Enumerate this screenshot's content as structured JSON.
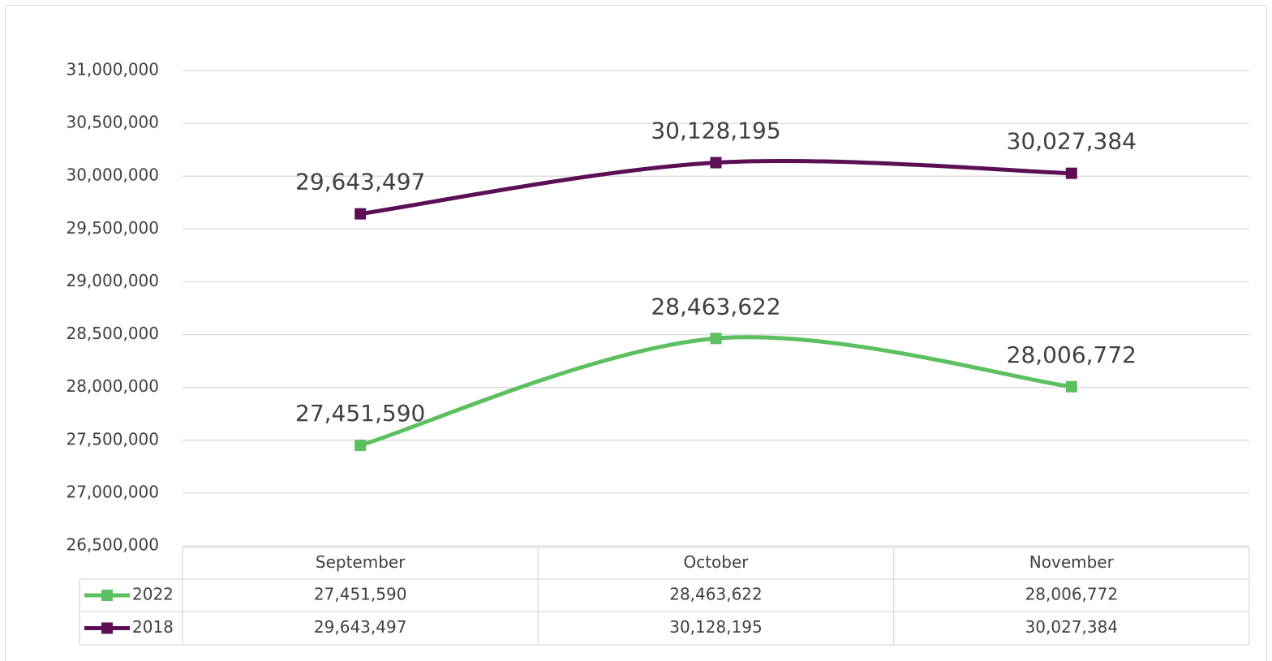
{
  "chart_data": {
    "type": "line",
    "categories": [
      "September",
      "October",
      "November"
    ],
    "series": [
      {
        "name": "2022",
        "color": "#5cbf60",
        "values": [
          27451590,
          28463622,
          28006772
        ],
        "value_labels": [
          "27,451,590",
          "28,463,622",
          "28,006,772"
        ]
      },
      {
        "name": "2018",
        "color": "#5c0f55",
        "values": [
          29643497,
          30128195,
          30027384
        ],
        "value_labels": [
          "29,643,497",
          "30,128,195",
          "30,027,384"
        ]
      }
    ],
    "ylim": [
      26500000,
      31000000
    ],
    "yticks": [
      {
        "value": 26500000,
        "label": "26,500,000"
      },
      {
        "value": 27000000,
        "label": "27,000,000"
      },
      {
        "value": 27500000,
        "label": "27,500,000"
      },
      {
        "value": 28000000,
        "label": "28,000,000"
      },
      {
        "value": 28500000,
        "label": "28,500,000"
      },
      {
        "value": 29000000,
        "label": "29,000,000"
      },
      {
        "value": 29500000,
        "label": "29,500,000"
      },
      {
        "value": 30000000,
        "label": "30,000,000"
      },
      {
        "value": 30500000,
        "label": "30,500,000"
      },
      {
        "value": 31000000,
        "label": "31,000,000"
      }
    ],
    "grid": true,
    "smooth": true
  }
}
